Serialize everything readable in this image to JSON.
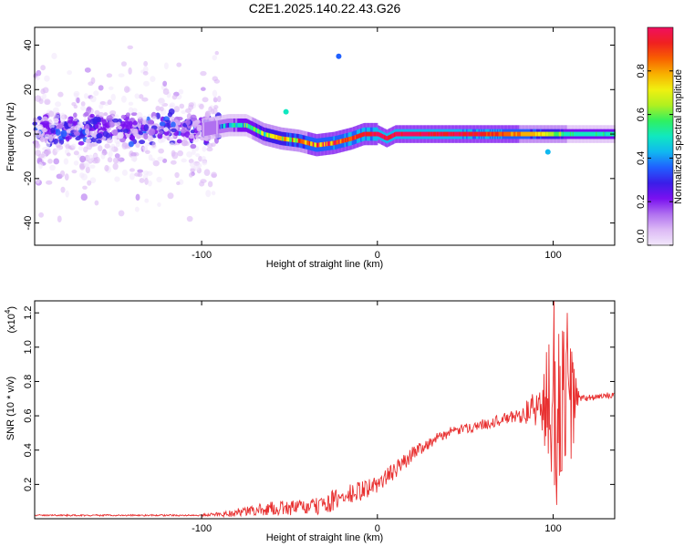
{
  "title": "C2E1.2025.140.22.43.G26",
  "chart_data": [
    {
      "type": "heatmap",
      "xlabel": "Height of straight line (km)",
      "ylabel": "Frequency (Hz)",
      "xlim": [
        -195,
        135
      ],
      "ylim": [
        -50,
        48
      ],
      "xticks": [
        -100,
        0,
        100
      ],
      "yticks": [
        -40,
        -20,
        0,
        20,
        40
      ],
      "colorbar": {
        "label": "Normalized spectral amplitude",
        "range": [
          0.0,
          1.0
        ],
        "ticks": [
          0.0,
          0.2,
          0.4,
          0.6,
          0.8
        ],
        "tick_labels": [
          "0.0",
          "0.2",
          "0.4",
          "0.6",
          "0.8"
        ],
        "colors": [
          "#f2e8fb",
          "#dcb9f5",
          "#b070f0",
          "#7a10f0",
          "#3a1ee8",
          "#2060ff",
          "#10b8f0",
          "#10e8c0",
          "#30f060",
          "#b0f020",
          "#f0f010",
          "#f8b000",
          "#f86000",
          "#f02020",
          "#f01060"
        ]
      },
      "noise_region": {
        "x": [
          -195,
          -90
        ],
        "freq_spread": 45,
        "amplitude": 0.15
      },
      "band_center_points": [
        {
          "x": -195,
          "f": 3
        },
        {
          "x": -150,
          "f": 2
        },
        {
          "x": -100,
          "f": 2
        },
        {
          "x": -85,
          "f": 4
        },
        {
          "x": -75,
          "f": 4
        },
        {
          "x": -65,
          "f": 0
        },
        {
          "x": -55,
          "f": -2
        },
        {
          "x": -45,
          "f": -3
        },
        {
          "x": -35,
          "f": -5
        },
        {
          "x": -25,
          "f": -4
        },
        {
          "x": -15,
          "f": -2
        },
        {
          "x": -8,
          "f": 0
        },
        {
          "x": 0,
          "f": 0
        },
        {
          "x": 5,
          "f": -2
        },
        {
          "x": 10,
          "f": 0
        },
        {
          "x": 50,
          "f": 0
        },
        {
          "x": 100,
          "f": 0
        },
        {
          "x": 135,
          "f": 0
        }
      ],
      "band_amplitude_points": [
        {
          "x": -90,
          "a": 0.35
        },
        {
          "x": -70,
          "a": 0.55
        },
        {
          "x": -40,
          "a": 0.8
        },
        {
          "x": -10,
          "a": 0.9
        },
        {
          "x": 0,
          "a": 0.95
        },
        {
          "x": 20,
          "a": 0.97
        },
        {
          "x": 60,
          "a": 0.9
        },
        {
          "x": 90,
          "a": 0.75
        },
        {
          "x": 110,
          "a": 0.5
        },
        {
          "x": 135,
          "a": 0.5
        }
      ],
      "artifacts": [
        {
          "x": -22,
          "f": 35,
          "a": 0.35
        },
        {
          "x": -52,
          "f": 10,
          "a": 0.5
        },
        {
          "x": 97,
          "f": -8,
          "a": 0.4
        }
      ]
    },
    {
      "type": "line",
      "xlabel": "Height of straight line (km)",
      "ylabel": "SNR (10 * v/v)",
      "y_multiplier": "(x10",
      "y_multiplier_exp": "4",
      "xlim": [
        -195,
        135
      ],
      "ylim": [
        0,
        1.27
      ],
      "xticks": [
        -100,
        0,
        100
      ],
      "yticks": [
        0.2,
        0.4,
        0.6,
        0.8,
        1.0,
        1.2
      ],
      "ytick_labels": [
        "0.2",
        "0.4",
        "0.6",
        "0.8",
        "1.0",
        "1.2"
      ],
      "color": "#e83030",
      "series_points": [
        {
          "x": -195,
          "y": 0.02,
          "noise": 0.006
        },
        {
          "x": -100,
          "y": 0.02,
          "noise": 0.006
        },
        {
          "x": -85,
          "y": 0.03,
          "noise": 0.02
        },
        {
          "x": -60,
          "y": 0.06,
          "noise": 0.04
        },
        {
          "x": -35,
          "y": 0.07,
          "noise": 0.05
        },
        {
          "x": -20,
          "y": 0.12,
          "noise": 0.07
        },
        {
          "x": 0,
          "y": 0.2,
          "noise": 0.05
        },
        {
          "x": 12,
          "y": 0.3,
          "noise": 0.05
        },
        {
          "x": 22,
          "y": 0.4,
          "noise": 0.04
        },
        {
          "x": 40,
          "y": 0.5,
          "noise": 0.03
        },
        {
          "x": 60,
          "y": 0.55,
          "noise": 0.03
        },
        {
          "x": 80,
          "y": 0.6,
          "noise": 0.04
        },
        {
          "x": 92,
          "y": 0.65,
          "noise": 0.12
        },
        {
          "x": 100,
          "y": 0.65,
          "noise": 0.55
        },
        {
          "x": 110,
          "y": 0.68,
          "noise": 0.4
        },
        {
          "x": 115,
          "y": 0.7,
          "noise": 0.02
        },
        {
          "x": 135,
          "y": 0.72,
          "noise": 0.02
        }
      ],
      "peaks": [
        {
          "x": 100.5,
          "y": 1.27
        },
        {
          "x": 108,
          "y": 1.2
        },
        {
          "x": 102,
          "y": 0.08
        }
      ]
    }
  ]
}
